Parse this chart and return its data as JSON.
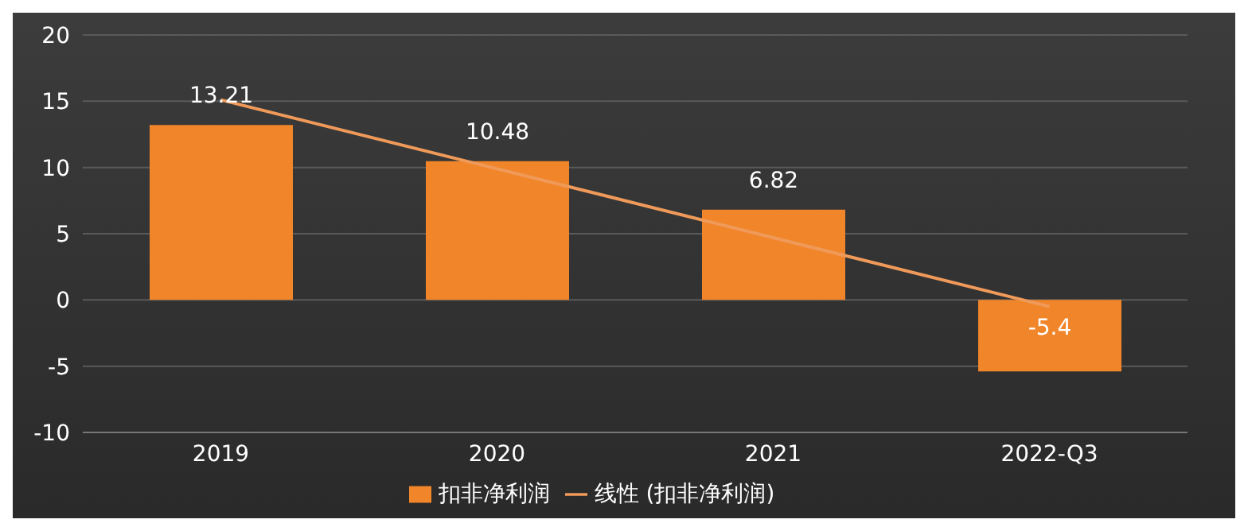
{
  "chart_data": {
    "type": "bar",
    "categories": [
      "2019",
      "2020",
      "2021",
      "2022-Q3"
    ],
    "series": [
      {
        "name": "扣非净利润",
        "color": "#f0852a",
        "values": [
          13.21,
          10.48,
          6.82,
          -5.4
        ],
        "value_labels": [
          "13.21",
          "10.48",
          "6.82",
          "-5.4"
        ]
      },
      {
        "name": "线性 (扣非净利润)",
        "type": "line",
        "color": "#f09a5a",
        "values": [
          15.1,
          9.9,
          4.7,
          -0.5
        ]
      }
    ],
    "ylim": [
      -10,
      20
    ],
    "yticks": [
      -10,
      -5,
      0,
      5,
      10,
      15,
      20
    ],
    "grid": "y",
    "legend": "bottom",
    "marker": "none"
  }
}
